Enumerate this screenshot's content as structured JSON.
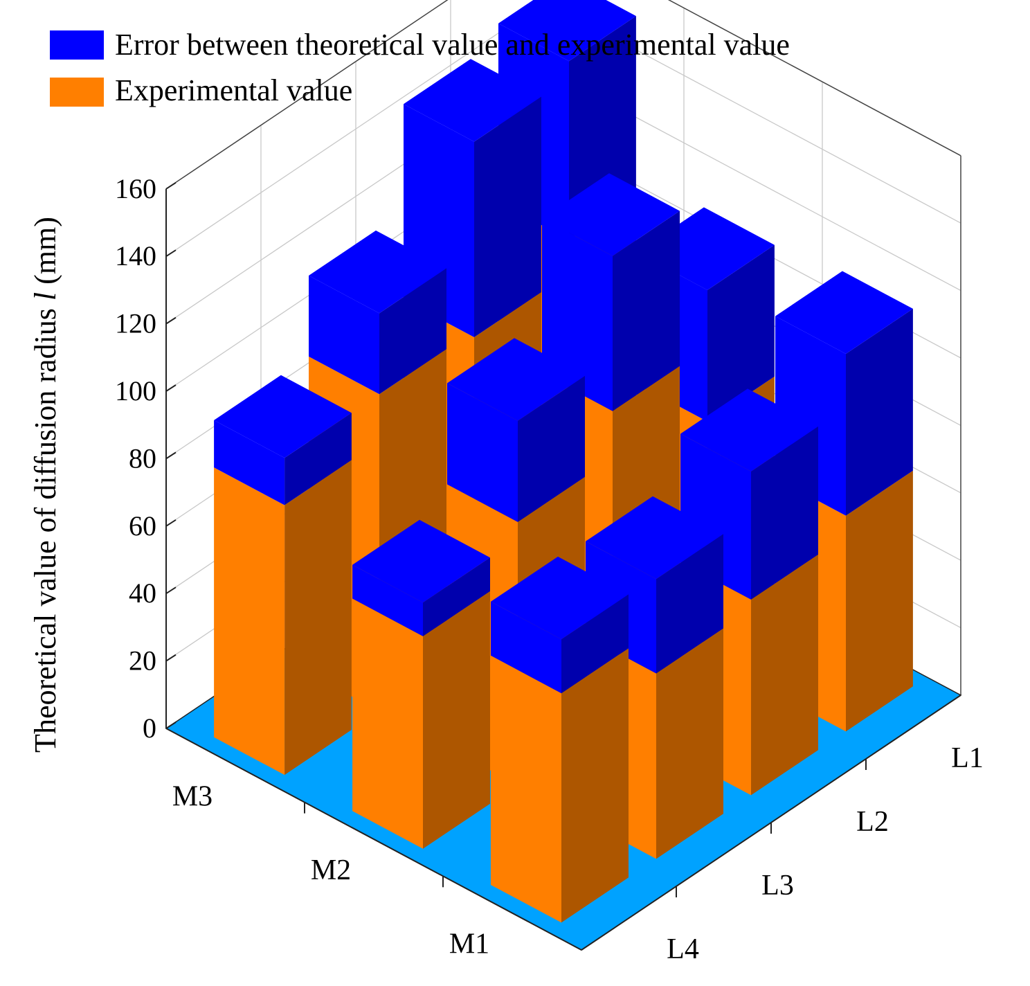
{
  "chart_data": {
    "type": "bar3d-stacked",
    "ylabel": "Theoretical value of diffusion radius l (mm)",
    "ylabel_prefix": "Theoretical value of diffusion radius ",
    "ylabel_var": "l",
    "ylabel_unit": " (mm)",
    "zlim": [
      0,
      160
    ],
    "zticks": [
      0,
      20,
      40,
      60,
      80,
      100,
      120,
      140,
      160
    ],
    "x_categories": [
      "L1",
      "L2",
      "L3",
      "L4"
    ],
    "y_categories": [
      "M1",
      "M2",
      "M3"
    ],
    "series": [
      {
        "name": "Experimental value",
        "color": "#ff7f00",
        "stack_part": "bottom"
      },
      {
        "name": "Error between theoretical value and experimental value",
        "color": "#0000ff",
        "stack_part": "top"
      }
    ],
    "legend": [
      {
        "label": "Error between theoretical value and experimental value",
        "color": "#0000ff"
      },
      {
        "label": "Experimental value",
        "color": "#ff7f00"
      }
    ],
    "bars": [
      {
        "x": "L1",
        "y": "M3",
        "experimental": 102,
        "error": 53
      },
      {
        "x": "L2",
        "y": "M3",
        "experimental": 92,
        "error": 58
      },
      {
        "x": "L3",
        "y": "M3",
        "experimental": 94,
        "error": 24
      },
      {
        "x": "L4",
        "y": "M3",
        "experimental": 80,
        "error": 14
      },
      {
        "x": "L1",
        "y": "M2",
        "experimental": 70,
        "error": 39
      },
      {
        "x": "L2",
        "y": "M2",
        "experimental": 92,
        "error": 46
      },
      {
        "x": "L3",
        "y": "M2",
        "experimental": 78,
        "error": 30
      },
      {
        "x": "L4",
        "y": "M2",
        "experimental": 63,
        "error": 10
      },
      {
        "x": "L1",
        "y": "M1",
        "experimental": 64,
        "error": 48
      },
      {
        "x": "L2",
        "y": "M1",
        "experimental": 58,
        "error": 38
      },
      {
        "x": "L3",
        "y": "M1",
        "experimental": 55,
        "error": 28
      },
      {
        "x": "L4",
        "y": "M1",
        "experimental": 68,
        "error": 16
      }
    ],
    "floor_color": "#00a2ff"
  }
}
